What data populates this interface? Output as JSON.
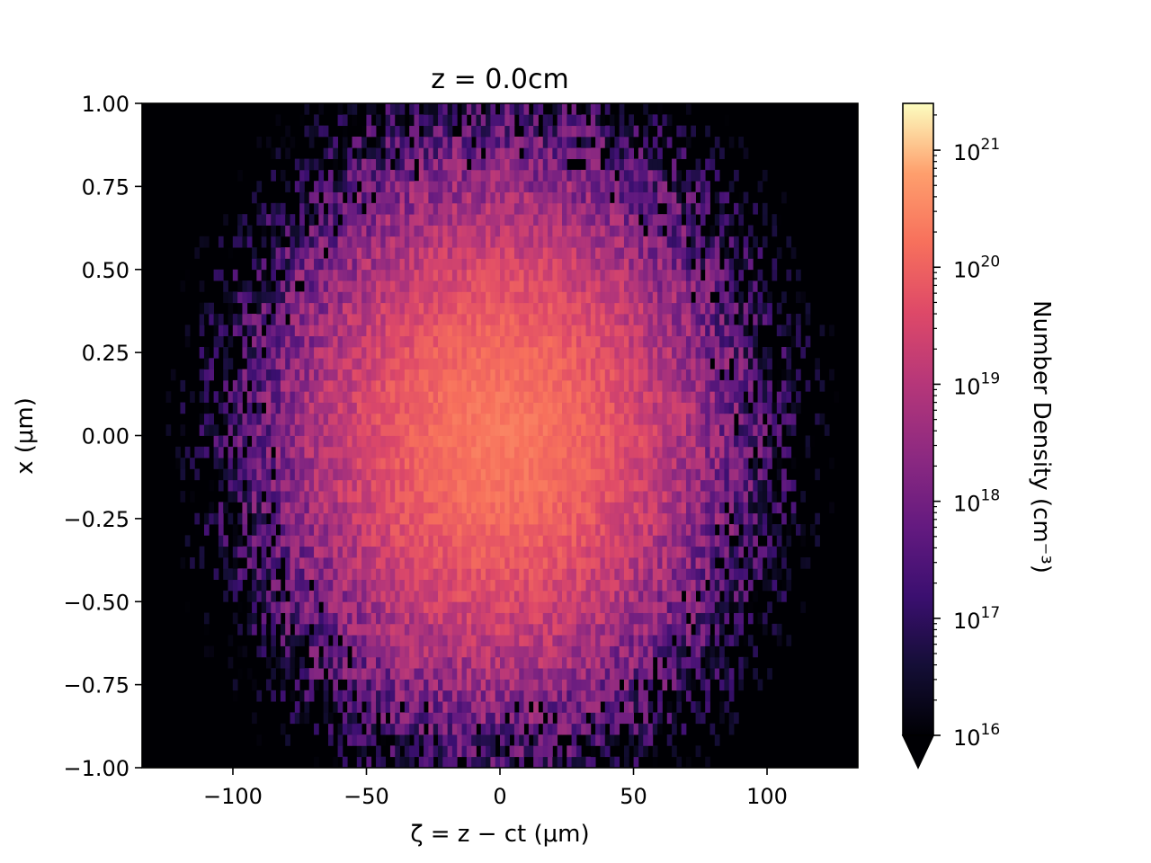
{
  "chart_data": {
    "type": "heatmap",
    "title": "z = 0.0cm",
    "xlabel": "ζ = z − ct (μm)",
    "ylabel": "x (μm)",
    "xlim": [
      -134,
      134
    ],
    "ylim": [
      -1.0,
      1.0
    ],
    "x_ticks": [
      -100,
      -50,
      0,
      50,
      100
    ],
    "x_tick_labels": [
      "−100",
      "−50",
      "0",
      "50",
      "100"
    ],
    "y_ticks": [
      1.0,
      0.75,
      0.5,
      0.25,
      0.0,
      -0.25,
      -0.5,
      -0.75,
      -1.0
    ],
    "y_tick_labels": [
      "1.00",
      "0.75",
      "0.50",
      "0.25",
      "0.00",
      "−0.25",
      "−0.50",
      "−0.75",
      "−1.00"
    ],
    "colormap": "magma",
    "colorbar": {
      "label": "Number Density (cm⁻³)",
      "scale": "log",
      "log_range": [
        16,
        21.4
      ],
      "extend": "min",
      "ticks": [
        16,
        17,
        18,
        19,
        20,
        21
      ],
      "tick_labels": [
        "10",
        "10",
        "10",
        "10",
        "10",
        "10"
      ],
      "tick_exponents": [
        "16",
        "17",
        "18",
        "19",
        "20",
        "21"
      ]
    },
    "beam": {
      "peak_density_exponent": 20.3,
      "center_zeta": 0,
      "center_x": 0.0
    }
  }
}
